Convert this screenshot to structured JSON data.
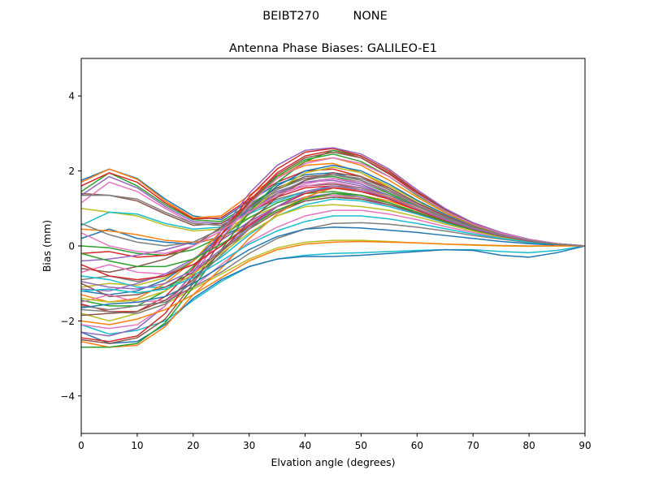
{
  "chart_data": {
    "type": "line",
    "suptitle": "BEIBT270         NONE",
    "title": "Antenna Phase Biases: GALILEO-E1",
    "xlabel": "Elvation angle (degrees)",
    "ylabel": "Bias (mm)",
    "xlim": [
      0,
      90
    ],
    "ylim": [
      -5,
      5
    ],
    "xticks": [
      0,
      10,
      20,
      30,
      40,
      50,
      60,
      70,
      80,
      90
    ],
    "yticks": [
      -4,
      -2,
      0,
      2,
      4
    ],
    "grid": false,
    "legend": "none",
    "x": [
      0,
      5,
      10,
      15,
      20,
      25,
      30,
      35,
      40,
      45,
      50,
      55,
      60,
      65,
      70,
      75,
      80,
      85,
      90
    ],
    "colors": [
      "#1f77b4",
      "#ff7f0e",
      "#2ca02c",
      "#d62728",
      "#9467bd",
      "#8c564b",
      "#e377c2",
      "#7f7f7f",
      "#bcbd22",
      "#17becf"
    ],
    "series": [
      {
        "values": [
          1.75,
          2.05,
          1.8,
          1.25,
          0.8,
          0.7,
          1.2,
          1.65,
          1.9,
          1.95,
          1.75,
          1.4,
          1.05,
          0.75,
          0.5,
          0.3,
          0.15,
          0.05,
          0.0
        ]
      },
      {
        "values": [
          1.7,
          2.05,
          1.78,
          1.2,
          0.75,
          0.8,
          1.35,
          1.85,
          2.15,
          2.2,
          1.95,
          1.55,
          1.15,
          0.8,
          0.55,
          0.32,
          0.16,
          0.06,
          0.0
        ]
      },
      {
        "values": [
          1.45,
          1.95,
          1.6,
          1.1,
          0.7,
          0.65,
          1.1,
          1.55,
          1.8,
          1.85,
          1.7,
          1.4,
          1.05,
          0.75,
          0.5,
          0.3,
          0.15,
          0.05,
          0.0
        ]
      },
      {
        "values": [
          1.6,
          1.95,
          1.7,
          1.15,
          0.72,
          0.75,
          1.25,
          1.7,
          2.0,
          2.05,
          1.85,
          1.5,
          1.1,
          0.78,
          0.52,
          0.31,
          0.15,
          0.05,
          0.0
        ]
      },
      {
        "values": [
          1.35,
          1.85,
          1.55,
          1.05,
          0.65,
          0.6,
          1.05,
          1.45,
          1.7,
          1.75,
          1.6,
          1.35,
          1.0,
          0.72,
          0.48,
          0.29,
          0.14,
          0.05,
          0.0
        ]
      },
      {
        "values": [
          1.4,
          1.35,
          1.2,
          0.85,
          0.55,
          0.6,
          1.0,
          1.4,
          1.6,
          1.65,
          1.55,
          1.3,
          1.0,
          0.7,
          0.45,
          0.28,
          0.14,
          0.05,
          0.0
        ]
      },
      {
        "values": [
          1.15,
          1.7,
          1.45,
          1.0,
          0.6,
          0.55,
          0.95,
          1.35,
          1.6,
          1.7,
          1.55,
          1.3,
          0.98,
          0.7,
          0.46,
          0.28,
          0.14,
          0.05,
          0.0
        ]
      },
      {
        "values": [
          1.35,
          1.35,
          1.25,
          0.9,
          0.6,
          0.55,
          0.9,
          1.25,
          1.45,
          1.55,
          1.45,
          1.25,
          0.95,
          0.68,
          0.45,
          0.27,
          0.13,
          0.05,
          0.0
        ]
      },
      {
        "values": [
          1.0,
          0.9,
          0.8,
          0.55,
          0.4,
          0.45,
          0.75,
          1.05,
          1.25,
          1.35,
          1.3,
          1.15,
          0.9,
          0.65,
          0.43,
          0.26,
          0.13,
          0.04,
          0.0
        ]
      },
      {
        "values": [
          0.55,
          0.9,
          0.85,
          0.6,
          0.45,
          0.5,
          0.85,
          1.2,
          1.45,
          1.55,
          1.45,
          1.25,
          0.95,
          0.68,
          0.45,
          0.27,
          0.13,
          0.05,
          0.0
        ]
      },
      {
        "values": [
          0.2,
          0.45,
          0.2,
          0.1,
          0.05,
          0.25,
          0.6,
          0.95,
          1.2,
          1.3,
          1.25,
          1.1,
          0.88,
          0.64,
          0.43,
          0.26,
          0.13,
          0.04,
          0.0
        ]
      },
      {
        "values": [
          0.45,
          0.4,
          0.3,
          0.15,
          0.1,
          0.2,
          0.55,
          0.95,
          1.25,
          1.4,
          1.35,
          1.2,
          0.95,
          0.68,
          0.45,
          0.27,
          0.13,
          0.05,
          0.0
        ]
      },
      {
        "values": [
          0.0,
          -0.05,
          -0.2,
          -0.25,
          -0.1,
          0.25,
          0.75,
          1.15,
          1.4,
          1.45,
          1.35,
          1.15,
          0.9,
          0.65,
          0.43,
          0.26,
          0.13,
          0.04,
          0.0
        ]
      },
      {
        "values": [
          -0.2,
          -0.15,
          -0.3,
          -0.25,
          0.0,
          0.4,
          0.9,
          1.3,
          1.55,
          1.6,
          1.5,
          1.25,
          0.95,
          0.68,
          0.45,
          0.27,
          0.13,
          0.05,
          0.0
        ]
      },
      {
        "values": [
          -0.4,
          -0.35,
          -0.25,
          -0.1,
          0.1,
          0.45,
          0.95,
          1.4,
          1.7,
          1.8,
          1.65,
          1.35,
          1.0,
          0.7,
          0.46,
          0.28,
          0.14,
          0.05,
          0.0
        ]
      },
      {
        "values": [
          -0.6,
          -0.7,
          -0.55,
          -0.35,
          0.0,
          0.5,
          1.05,
          1.55,
          1.85,
          1.9,
          1.75,
          1.45,
          1.08,
          0.75,
          0.48,
          0.29,
          0.14,
          0.05,
          0.0
        ]
      },
      {
        "values": [
          -0.7,
          -0.5,
          -0.7,
          -0.75,
          -0.5,
          0.0,
          0.6,
          1.05,
          1.3,
          1.35,
          1.25,
          1.05,
          0.85,
          0.62,
          0.42,
          0.25,
          0.12,
          0.04,
          0.0
        ]
      },
      {
        "values": [
          -0.9,
          -0.8,
          -0.95,
          -0.8,
          -0.4,
          0.2,
          0.85,
          1.4,
          1.75,
          1.9,
          1.8,
          1.5,
          1.12,
          0.78,
          0.5,
          0.3,
          0.15,
          0.05,
          0.0
        ]
      },
      {
        "values": [
          -1.1,
          -1.0,
          -1.05,
          -0.85,
          -0.4,
          0.2,
          0.9,
          1.5,
          1.95,
          2.1,
          1.95,
          1.6,
          1.2,
          0.82,
          0.52,
          0.31,
          0.15,
          0.05,
          0.0
        ]
      },
      {
        "values": [
          -0.8,
          -0.9,
          -1.1,
          -1.1,
          -0.8,
          -0.3,
          0.3,
          0.8,
          1.1,
          1.25,
          1.2,
          1.05,
          0.85,
          0.62,
          0.42,
          0.25,
          0.12,
          0.04,
          0.0
        ]
      },
      {
        "values": [
          -1.2,
          -1.3,
          -1.2,
          -0.9,
          -0.4,
          0.3,
          1.0,
          1.6,
          2.0,
          2.15,
          2.0,
          1.65,
          1.22,
          0.84,
          0.53,
          0.31,
          0.15,
          0.05,
          0.0
        ]
      },
      {
        "values": [
          -1.3,
          -1.5,
          -1.4,
          -1.0,
          -0.4,
          0.4,
          1.15,
          1.8,
          2.25,
          2.35,
          2.15,
          1.75,
          1.3,
          0.88,
          0.55,
          0.32,
          0.16,
          0.05,
          0.0
        ]
      },
      {
        "values": [
          -1.45,
          -1.6,
          -1.6,
          -1.2,
          -0.55,
          0.3,
          1.15,
          1.85,
          2.3,
          2.45,
          2.25,
          1.85,
          1.35,
          0.92,
          0.57,
          0.33,
          0.16,
          0.06,
          0.0
        ]
      },
      {
        "values": [
          -1.55,
          -1.75,
          -1.75,
          -1.35,
          -0.6,
          0.3,
          1.2,
          1.95,
          2.4,
          2.55,
          2.35,
          1.92,
          1.4,
          0.95,
          0.58,
          0.34,
          0.17,
          0.06,
          0.0
        ]
      },
      {
        "values": [
          -1.15,
          -1.2,
          -1.0,
          -0.75,
          -0.35,
          0.15,
          0.65,
          1.05,
          1.3,
          1.4,
          1.3,
          1.1,
          0.88,
          0.64,
          0.43,
          0.26,
          0.13,
          0.04,
          0.0
        ]
      },
      {
        "values": [
          -1.0,
          -1.35,
          -1.3,
          -1.1,
          -0.7,
          -0.15,
          0.45,
          0.9,
          1.2,
          1.3,
          1.25,
          1.1,
          0.88,
          0.64,
          0.43,
          0.26,
          0.13,
          0.04,
          0.0
        ]
      },
      {
        "values": [
          -1.5,
          -1.3,
          -1.5,
          -1.45,
          -1.1,
          -0.5,
          0.1,
          0.5,
          0.8,
          0.95,
          0.95,
          0.85,
          0.7,
          0.52,
          0.36,
          0.22,
          0.11,
          0.04,
          0.0
        ]
      },
      {
        "values": [
          -1.6,
          -1.7,
          -1.6,
          -1.5,
          -1.1,
          -0.7,
          -0.2,
          0.2,
          0.45,
          0.6,
          0.62,
          0.58,
          0.5,
          0.4,
          0.28,
          0.18,
          0.09,
          0.03,
          0.0
        ]
      },
      {
        "values": [
          -1.8,
          -2.0,
          -1.8,
          -1.55,
          -1.15,
          -0.75,
          -0.35,
          -0.05,
          0.1,
          0.15,
          0.15,
          0.12,
          0.08,
          0.05,
          0.02,
          0.0,
          -0.01,
          0.0,
          0.0
        ]
      },
      {
        "values": [
          -2.1,
          -2.35,
          -2.25,
          -2.0,
          -1.45,
          -0.95,
          -0.55,
          -0.35,
          -0.25,
          -0.2,
          -0.18,
          -0.15,
          -0.12,
          -0.1,
          -0.1,
          -0.15,
          -0.18,
          -0.12,
          0.0
        ]
      },
      {
        "values": [
          -2.3,
          -2.6,
          -2.55,
          -2.1,
          -1.4,
          -0.9,
          -0.55,
          -0.35,
          -0.28,
          -0.28,
          -0.25,
          -0.2,
          -0.15,
          -0.1,
          -0.12,
          -0.25,
          -0.3,
          -0.18,
          0.0
        ]
      },
      {
        "values": [
          -2.55,
          -2.7,
          -2.65,
          -2.15,
          -1.3,
          -0.6,
          0.2,
          0.85,
          1.3,
          1.55,
          1.5,
          1.3,
          1.0,
          0.7,
          0.46,
          0.28,
          0.14,
          0.05,
          0.0
        ]
      },
      {
        "values": [
          -2.7,
          -2.7,
          -2.6,
          -2.05,
          -1.1,
          -0.1,
          0.9,
          1.7,
          2.25,
          2.55,
          2.4,
          2.0,
          1.45,
          0.98,
          0.6,
          0.35,
          0.17,
          0.06,
          0.0
        ]
      },
      {
        "values": [
          -2.45,
          -2.55,
          -2.4,
          -1.8,
          -0.8,
          0.3,
          1.3,
          2.05,
          2.5,
          2.6,
          2.4,
          2.0,
          1.45,
          0.98,
          0.6,
          0.35,
          0.17,
          0.06,
          0.0
        ]
      },
      {
        "values": [
          -2.3,
          -2.4,
          -2.2,
          -1.6,
          -0.7,
          0.4,
          1.4,
          2.15,
          2.55,
          2.62,
          2.45,
          2.05,
          1.5,
          1.0,
          0.62,
          0.36,
          0.18,
          0.06,
          0.0
        ]
      },
      {
        "values": [
          -2.5,
          -2.6,
          -2.45,
          -1.95,
          -1.0,
          0.15,
          1.15,
          1.9,
          2.35,
          2.5,
          2.35,
          1.95,
          1.42,
          0.96,
          0.59,
          0.34,
          0.17,
          0.06,
          0.0
        ]
      },
      {
        "values": [
          -2.1,
          -2.2,
          -2.1,
          -1.6,
          -0.75,
          0.2,
          1.1,
          1.8,
          2.2,
          2.35,
          2.2,
          1.85,
          1.38,
          0.93,
          0.58,
          0.34,
          0.17,
          0.06,
          0.0
        ]
      },
      {
        "values": [
          -1.7,
          -1.75,
          -1.8,
          -1.55,
          -0.95,
          -0.25,
          0.45,
          1.05,
          1.45,
          1.6,
          1.55,
          1.35,
          1.05,
          0.74,
          0.48,
          0.29,
          0.14,
          0.05,
          0.0
        ]
      },
      {
        "values": [
          -1.4,
          -1.5,
          -1.45,
          -1.2,
          -0.75,
          -0.2,
          0.35,
          0.8,
          1.05,
          1.1,
          1.05,
          0.95,
          0.78,
          0.58,
          0.4,
          0.24,
          0.12,
          0.04,
          0.0
        ]
      },
      {
        "values": [
          -1.2,
          -1.15,
          -1.25,
          -1.15,
          -0.85,
          -0.4,
          0.05,
          0.4,
          0.65,
          0.8,
          0.8,
          0.72,
          0.6,
          0.46,
          0.32,
          0.2,
          0.1,
          0.03,
          0.0
        ]
      },
      {
        "values": [
          -1.65,
          -1.55,
          -1.5,
          -1.35,
          -1.0,
          -0.55,
          -0.1,
          0.25,
          0.45,
          0.5,
          0.48,
          0.42,
          0.36,
          0.28,
          0.2,
          0.12,
          0.06,
          0.02,
          0.0
        ]
      },
      {
        "values": [
          -2.0,
          -2.1,
          -1.95,
          -1.7,
          -1.3,
          -0.85,
          -0.4,
          -0.1,
          0.05,
          0.1,
          0.12,
          0.1,
          0.08,
          0.05,
          0.03,
          0.01,
          0.0,
          0.0,
          0.0
        ]
      },
      {
        "values": [
          -0.2,
          -0.4,
          -0.55,
          -0.55,
          -0.35,
          0.05,
          0.5,
          0.95,
          1.25,
          1.4,
          1.35,
          1.15,
          0.9,
          0.65,
          0.43,
          0.26,
          0.13,
          0.04,
          0.0
        ]
      },
      {
        "values": [
          -0.5,
          -0.8,
          -0.9,
          -0.8,
          -0.5,
          0.0,
          0.55,
          1.05,
          1.4,
          1.55,
          1.45,
          1.25,
          0.95,
          0.68,
          0.45,
          0.27,
          0.13,
          0.05,
          0.0
        ]
      },
      {
        "values": [
          -0.95,
          -1.1,
          -1.15,
          -1.0,
          -0.65,
          -0.1,
          0.5,
          1.05,
          1.45,
          1.6,
          1.5,
          1.28,
          0.98,
          0.7,
          0.46,
          0.28,
          0.14,
          0.05,
          0.0
        ]
      },
      {
        "values": [
          -1.85,
          -1.8,
          -1.75,
          -1.45,
          -0.9,
          -0.15,
          0.65,
          1.3,
          1.75,
          1.95,
          1.85,
          1.55,
          1.15,
          0.8,
          0.5,
          0.3,
          0.15,
          0.05,
          0.0
        ]
      },
      {
        "values": [
          0.35,
          0.0,
          -0.15,
          -0.2,
          0.0,
          0.4,
          0.9,
          1.35,
          1.65,
          1.8,
          1.7,
          1.45,
          1.1,
          0.76,
          0.49,
          0.3,
          0.15,
          0.05,
          0.0
        ]
      },
      {
        "values": [
          0.6,
          0.3,
          0.1,
          0.0,
          0.1,
          0.45,
          1.0,
          1.5,
          1.8,
          1.9,
          1.75,
          1.45,
          1.08,
          0.76,
          0.49,
          0.3,
          0.15,
          0.05,
          0.0
        ]
      }
    ]
  }
}
